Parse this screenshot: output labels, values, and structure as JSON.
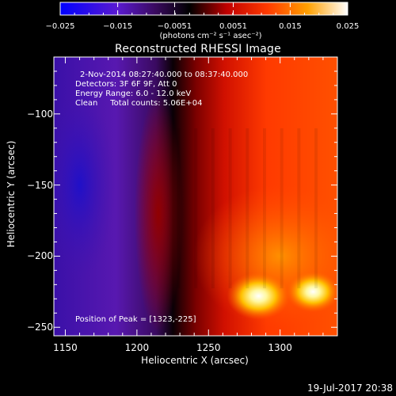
{
  "chart_data": {
    "type": "heatmap",
    "title": "Reconstructed RHESSI Image",
    "xlabel": "Heliocentric X (arcsec)",
    "ylabel": "Heliocentric Y (arcsec)",
    "xlim": [
      1142,
      1340
    ],
    "ylim": [
      -256,
      -60
    ],
    "x_ticks": [
      1150,
      1200,
      1250,
      1300
    ],
    "y_ticks": [
      -100,
      -150,
      -200,
      -250
    ],
    "colorbar": {
      "range": [
        -0.025,
        0.025
      ],
      "tick_values": [
        -0.025,
        -0.015,
        -0.0051,
        0.0051,
        0.015,
        0.025
      ],
      "tick_labels": [
        "−0.025",
        "−0.015",
        "−0.0051",
        "0.0051",
        "0.015",
        "0.025"
      ],
      "unit_label": "(photons cm⁻² s⁻¹ asec⁻²)",
      "colormap": [
        "#0000ff",
        "#6a22c0",
        "#000000",
        "#b30000",
        "#ff3300",
        "#ffb000",
        "#ffffff"
      ]
    },
    "peak": {
      "x": 1323,
      "y": -225,
      "value": 0.025
    },
    "secondary_peak": {
      "x": 1285,
      "y": -228,
      "value": 0.023
    },
    "negative_region": {
      "x": 1160,
      "y": -150,
      "value": -0.017
    },
    "annotations": [
      "2-Nov-2014 08:27:40.000 to 08:37:40.000",
      "Detectors: 3F 6F 9F, Att 0",
      "Energy Range: 6.0 - 12.0 keV",
      "Clean     Total counts: 5.06E+04"
    ],
    "peak_label": "Position of Peak = [1323,-225]",
    "footer": "19-Jul-2017 20:38"
  }
}
